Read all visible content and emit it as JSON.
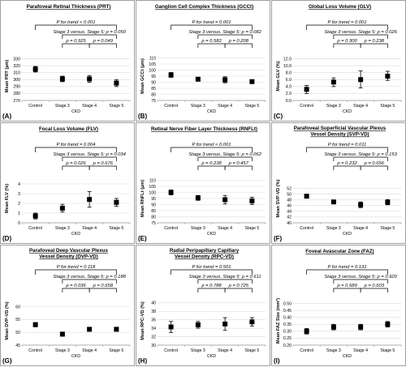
{
  "figure": {
    "xlabel": "CKD",
    "categories": [
      "Control",
      "Stage 3",
      "Stage 4",
      "Stage 5"
    ]
  },
  "chart_data": [
    {
      "letter": "(A)",
      "type": "scatter",
      "title": "Parafoveal Retinal Thickness (PRT)",
      "ylabel": "Mean PRT (µm)",
      "ylim": [
        270,
        340
      ],
      "yticks": [
        270,
        280,
        290,
        300,
        310,
        320,
        330
      ],
      "categories": [
        "Control",
        "Stage 3",
        "Stage 4",
        "Stage 5"
      ],
      "values": [
        315,
        301,
        301,
        295
      ],
      "err_low": [
        311,
        297,
        296,
        290
      ],
      "err_high": [
        319,
        305,
        306,
        300
      ],
      "trend": "P for trend < 0.001",
      "stage_comp": "Stage 3 versus. Stage 5: p = 0.050",
      "p34": "p = 0.925",
      "p45": "p = 0.049"
    },
    {
      "letter": "(B)",
      "type": "scatter",
      "title": "Ganglion Cell Complex Thickness (GCCt)",
      "ylabel": "Mean GCCt (µm)",
      "ylim": [
        75,
        115
      ],
      "yticks": [
        75,
        80,
        85,
        90,
        95,
        100,
        105,
        110
      ],
      "categories": [
        "Control",
        "Stage 3",
        "Stage 4",
        "Stage 5"
      ],
      "values": [
        96,
        92.5,
        92,
        90.5
      ],
      "err_low": [
        94,
        91,
        89.5,
        89
      ],
      "err_high": [
        98,
        94,
        94.5,
        92
      ],
      "trend": "P for trend = 0.001",
      "stage_comp": "Stage 3 versus. Stage 5: p = 0.082",
      "p34": "p = 0.582",
      "p45": "p = 0.208"
    },
    {
      "letter": "(C)",
      "type": "scatter",
      "title": "Global Loss Volume (GLV)",
      "ylabel": "Mean GLV (%)",
      "ylim": [
        0,
        14
      ],
      "yticks": [
        0.0,
        2.0,
        4.0,
        6.0,
        8.0,
        10.0,
        12.0
      ],
      "decimals": 1,
      "categories": [
        "Control",
        "Stage 3",
        "Stage 4",
        "Stage 5"
      ],
      "values": [
        3.2,
        5.3,
        6.0,
        7.0
      ],
      "err_low": [
        2.0,
        4.0,
        3.6,
        5.8
      ],
      "err_high": [
        4.3,
        6.5,
        8.5,
        8.4
      ],
      "trend": "P for trend = 0.001",
      "stage_comp": "Stage 3 versus. Stage 5: p = 0.026",
      "p34": "p = 0.300",
      "p45": "p = 0.238"
    },
    {
      "letter": "(D)",
      "type": "scatter",
      "title": "Focal Loss Volume (FLV)",
      "ylabel": "Mean FLV (%)",
      "ylim": [
        0,
        5
      ],
      "yticks": [
        0,
        1,
        2,
        3,
        4
      ],
      "categories": [
        "Control",
        "Stage 3",
        "Stage 4",
        "Stage 5"
      ],
      "values": [
        0.7,
        1.5,
        2.4,
        2.1
      ],
      "err_low": [
        0.4,
        1.1,
        1.6,
        1.7
      ],
      "err_high": [
        1.0,
        1.9,
        3.2,
        2.5
      ],
      "trend": "P for trend = 0.004",
      "stage_comp": "Stage 3 versus. Stage 5: p = 0.034",
      "p34": "p = 0.026",
      "p45": "p = 0.676"
    },
    {
      "letter": "(E)",
      "type": "scatter",
      "title": "Retinal Nerve Fiber Layer Thickness (RNFLt)",
      "ylabel": "Mean RNFLt (µm)",
      "ylim": [
        75,
        115
      ],
      "yticks": [
        75,
        80,
        85,
        90,
        95,
        100,
        105,
        110
      ],
      "categories": [
        "Control",
        "Stage 3",
        "Stage 4",
        "Stage 5"
      ],
      "values": [
        100,
        95.5,
        94,
        93
      ],
      "err_low": [
        98,
        93.5,
        90.5,
        90
      ],
      "err_high": [
        102,
        97.5,
        97.5,
        96
      ],
      "trend": "P for trend < 0.001",
      "stage_comp": "Stage 3 versus. Stage 5: p = 0.062",
      "p34": "p = 0.238",
      "p45": "p = 0.457"
    },
    {
      "letter": "(F)",
      "type": "scatter",
      "title": "Parafoveal Superficial Vascular Plexus Vessel Density (SVP-VD)",
      "title_lines": [
        "Parafoveal Superficial Vascular Plexus",
        "Vessel Density (SVP-VD)"
      ],
      "ylabel": "Mean SVP-VD (%)",
      "ylim": [
        40,
        57
      ],
      "yticks": [
        40,
        42,
        44,
        46,
        48,
        50,
        52
      ],
      "categories": [
        "Control",
        "Stage 3",
        "Stage 4",
        "Stage 5"
      ],
      "values": [
        49.3,
        47.3,
        46.3,
        47.2
      ],
      "err_low": [
        48.7,
        46.7,
        45.3,
        46.3
      ],
      "err_high": [
        49.9,
        47.9,
        47.3,
        48.1
      ],
      "trend": "P for trend = 0.011",
      "stage_comp": "Stage 3 versus. Stage 5: p = 0.153",
      "p34": "p = 0.232",
      "p45": "p = 0.656"
    },
    {
      "letter": "(G)",
      "type": "scatter",
      "title": "Parafoveal Deep Vascular Plexus Vessel Density (DVP-VD)",
      "title_lines": [
        "Parafoveal Deep Vascular Plexus",
        "Vessel Density (DVP-VD)"
      ],
      "ylabel": "Mean DVP-VD (%)",
      "ylim": [
        45,
        64
      ],
      "yticks": [
        45,
        50,
        55,
        60
      ],
      "categories": [
        "Control",
        "Stage 3",
        "Stage 4",
        "Stage 5"
      ],
      "values": [
        53.0,
        49.3,
        51.2,
        51.2
      ],
      "err_low": [
        52.2,
        48.5,
        50.4,
        50.4
      ],
      "err_high": [
        53.8,
        50.1,
        52.0,
        52.0
      ],
      "trend": "P for trend = 0.118",
      "stage_comp": "Stage 3 versus. Stage 5: p = 0.188",
      "p34": "p = 0.036",
      "p45": "p = 0.658"
    },
    {
      "letter": "(H)",
      "type": "scatter",
      "title": "Radial Peripapillary Capillary Vessel Density (RPC-VD)",
      "title_lines": [
        "Radial Peripapillary Capillary",
        "Vessel Density (RPC-VD)"
      ],
      "ylabel": "Mean RPC-VD (%)",
      "ylim": [
        30,
        41.5
      ],
      "yticks": [
        30,
        32,
        34,
        36,
        38,
        40
      ],
      "categories": [
        "Control",
        "Stage 3",
        "Stage 4",
        "Stage 5"
      ],
      "values": [
        34.3,
        34.8,
        35.0,
        35.5
      ],
      "err_low": [
        33.0,
        34.0,
        33.5,
        34.5
      ],
      "err_high": [
        35.6,
        35.6,
        36.5,
        36.5
      ],
      "trend": "P for trend = 0.501",
      "stage_comp": "Stage 3 versus. Stage 5: p = 0.611",
      "p34": "p = 0.788",
      "p45": "p = 0.725"
    },
    {
      "letter": "(I)",
      "type": "scatter",
      "title": "Foveal Avascular Zone (FAZ)",
      "ylabel": "Mean FAZ Size (mm²)",
      "ylim": [
        0.2,
        0.55
      ],
      "yticks": [
        0.2,
        0.25,
        0.3,
        0.35,
        0.4,
        0.45,
        0.5
      ],
      "decimals": 2,
      "categories": [
        "Control",
        "Stage 3",
        "Stage 4",
        "Stage 5"
      ],
      "values": [
        0.3,
        0.33,
        0.33,
        0.35
      ],
      "err_low": [
        0.28,
        0.31,
        0.31,
        0.33
      ],
      "err_high": [
        0.32,
        0.35,
        0.35,
        0.37
      ],
      "trend": "P for trend = 0.131",
      "stage_comp": "Stage 3 versus. Stage 5: p = 0.920",
      "p34": "p = 0.589",
      "p45": "p = 0.603"
    }
  ]
}
